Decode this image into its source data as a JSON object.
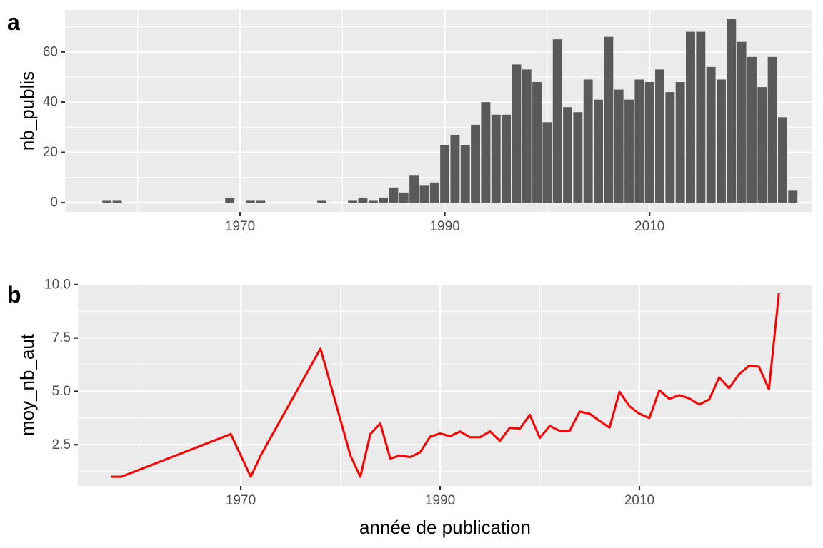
{
  "chart_data": [
    {
      "tag": "a",
      "type": "bar",
      "xlabel": "",
      "ylabel": "nb_publis",
      "xlim": [
        1952.9,
        2025.9
      ],
      "ylim": [
        -3.7,
        76.7
      ],
      "x_ticks": [
        1970,
        1990,
        2010
      ],
      "x_minor": [
        1960,
        1980,
        2000,
        2020
      ],
      "y_ticks": [
        0,
        20,
        40,
        60
      ],
      "y_minor": [
        10,
        30,
        50,
        70
      ],
      "bar_color": "#595959",
      "x": [
        1957,
        1958,
        1969,
        1971,
        1972,
        1978,
        1981,
        1982,
        1983,
        1984,
        1985,
        1986,
        1987,
        1988,
        1989,
        1990,
        1991,
        1992,
        1993,
        1994,
        1995,
        1996,
        1997,
        1998,
        1999,
        2000,
        2001,
        2002,
        2003,
        2004,
        2005,
        2006,
        2007,
        2008,
        2009,
        2010,
        2011,
        2012,
        2013,
        2014,
        2015,
        2016,
        2017,
        2018,
        2019,
        2020,
        2021,
        2022,
        2023,
        2024
      ],
      "values": [
        1,
        1,
        2,
        1,
        1,
        1,
        1,
        2,
        1,
        2,
        6,
        4,
        11,
        7,
        8,
        23,
        27,
        23,
        31,
        40,
        35,
        35,
        55,
        53,
        48,
        32,
        65,
        38,
        36,
        49,
        41,
        66,
        45,
        41,
        49,
        48,
        53,
        44,
        48,
        68,
        68,
        54,
        49,
        73,
        64,
        58,
        46,
        58,
        34,
        5
      ]
    },
    {
      "tag": "b",
      "type": "line",
      "xlabel": "année de publication",
      "ylabel": "moy_nb_aut",
      "xlim": [
        1953.65,
        2027.35
      ],
      "ylim": [
        0.57,
        10.03
      ],
      "x_ticks": [
        1970,
        1990,
        2010
      ],
      "x_minor": [
        1960,
        1980,
        2000,
        2020
      ],
      "y_ticks": [
        2.5,
        5.0,
        7.5,
        10.0
      ],
      "y_tick_labels": [
        "2.5",
        "5.0",
        "7.5",
        "10.0"
      ],
      "y_minor": [
        1.25,
        3.75,
        6.25,
        8.75
      ],
      "line_color": "#FF0000",
      "x": [
        1957,
        1958,
        1969,
        1971,
        1972,
        1978,
        1981,
        1982,
        1983,
        1984,
        1985,
        1986,
        1987,
        1988,
        1989,
        1990,
        1991,
        1992,
        1993,
        1994,
        1995,
        1996,
        1997,
        1998,
        1999,
        2000,
        2001,
        2002,
        2003,
        2004,
        2005,
        2006,
        2007,
        2008,
        2009,
        2010,
        2011,
        2012,
        2013,
        2014,
        2015,
        2016,
        2017,
        2018,
        2019,
        2020,
        2021,
        2022,
        2023,
        2024
      ],
      "y": [
        1.0,
        1.0,
        3.0,
        1.0,
        2.0,
        7.0,
        2.0,
        1.0,
        3.0,
        3.5,
        1.85,
        2.0,
        1.92,
        2.15,
        2.88,
        3.03,
        2.9,
        3.12,
        2.85,
        2.85,
        3.13,
        2.68,
        3.3,
        3.25,
        3.9,
        2.82,
        3.38,
        3.15,
        3.15,
        4.05,
        3.95,
        3.62,
        3.3,
        4.98,
        4.3,
        3.95,
        3.75,
        5.05,
        4.65,
        4.82,
        4.67,
        4.38,
        4.62,
        5.65,
        5.15,
        5.8,
        6.2,
        6.15,
        5.1,
        9.6
      ]
    }
  ]
}
